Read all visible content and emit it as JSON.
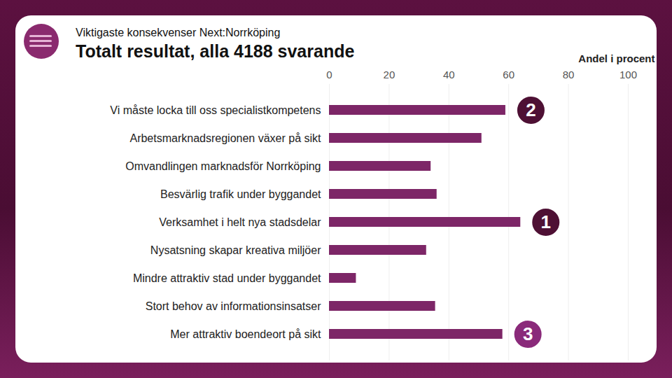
{
  "chart_data": {
    "type": "bar",
    "orientation": "horizontal",
    "subtitle": "Viktigaste konsekvenser Next:Norrköping",
    "title": "Totalt resultat, alla 4188 svarande",
    "x_label": "Andel i procent",
    "categories": [
      "Vi måste locka till oss specialistkompetens",
      "Arbetsmarknadsregionen växer på sikt",
      "Omvandlingen marknadsför Norrköping",
      "Besvärlig trafik under byggandet",
      "Verksamhet i helt nya stadsdelar",
      "Nysatsning skapar kreativa miljöer",
      "Mindre attraktiv stad under byggandet",
      "Stort behov av informationsinsatser",
      "Mer attraktiv boendeort på sikt"
    ],
    "values": [
      59,
      51,
      34,
      36,
      64,
      32.5,
      9,
      35.5,
      58
    ],
    "color": "#7d2667",
    "xlim": [
      0,
      100
    ],
    "xticks": [
      0,
      20,
      40,
      60,
      80,
      100
    ],
    "grid": true,
    "annotations": [
      {
        "category": "Vi måste locka till oss specialistkompetens",
        "label": "2",
        "color": "#4e1034"
      },
      {
        "category": "Verksamhet i helt nya stadsdelar",
        "label": "1",
        "color": "#4e1034"
      },
      {
        "category": "Mer attraktiv boendeort på sikt",
        "label": "3",
        "color": "#8a2a7a"
      }
    ]
  }
}
